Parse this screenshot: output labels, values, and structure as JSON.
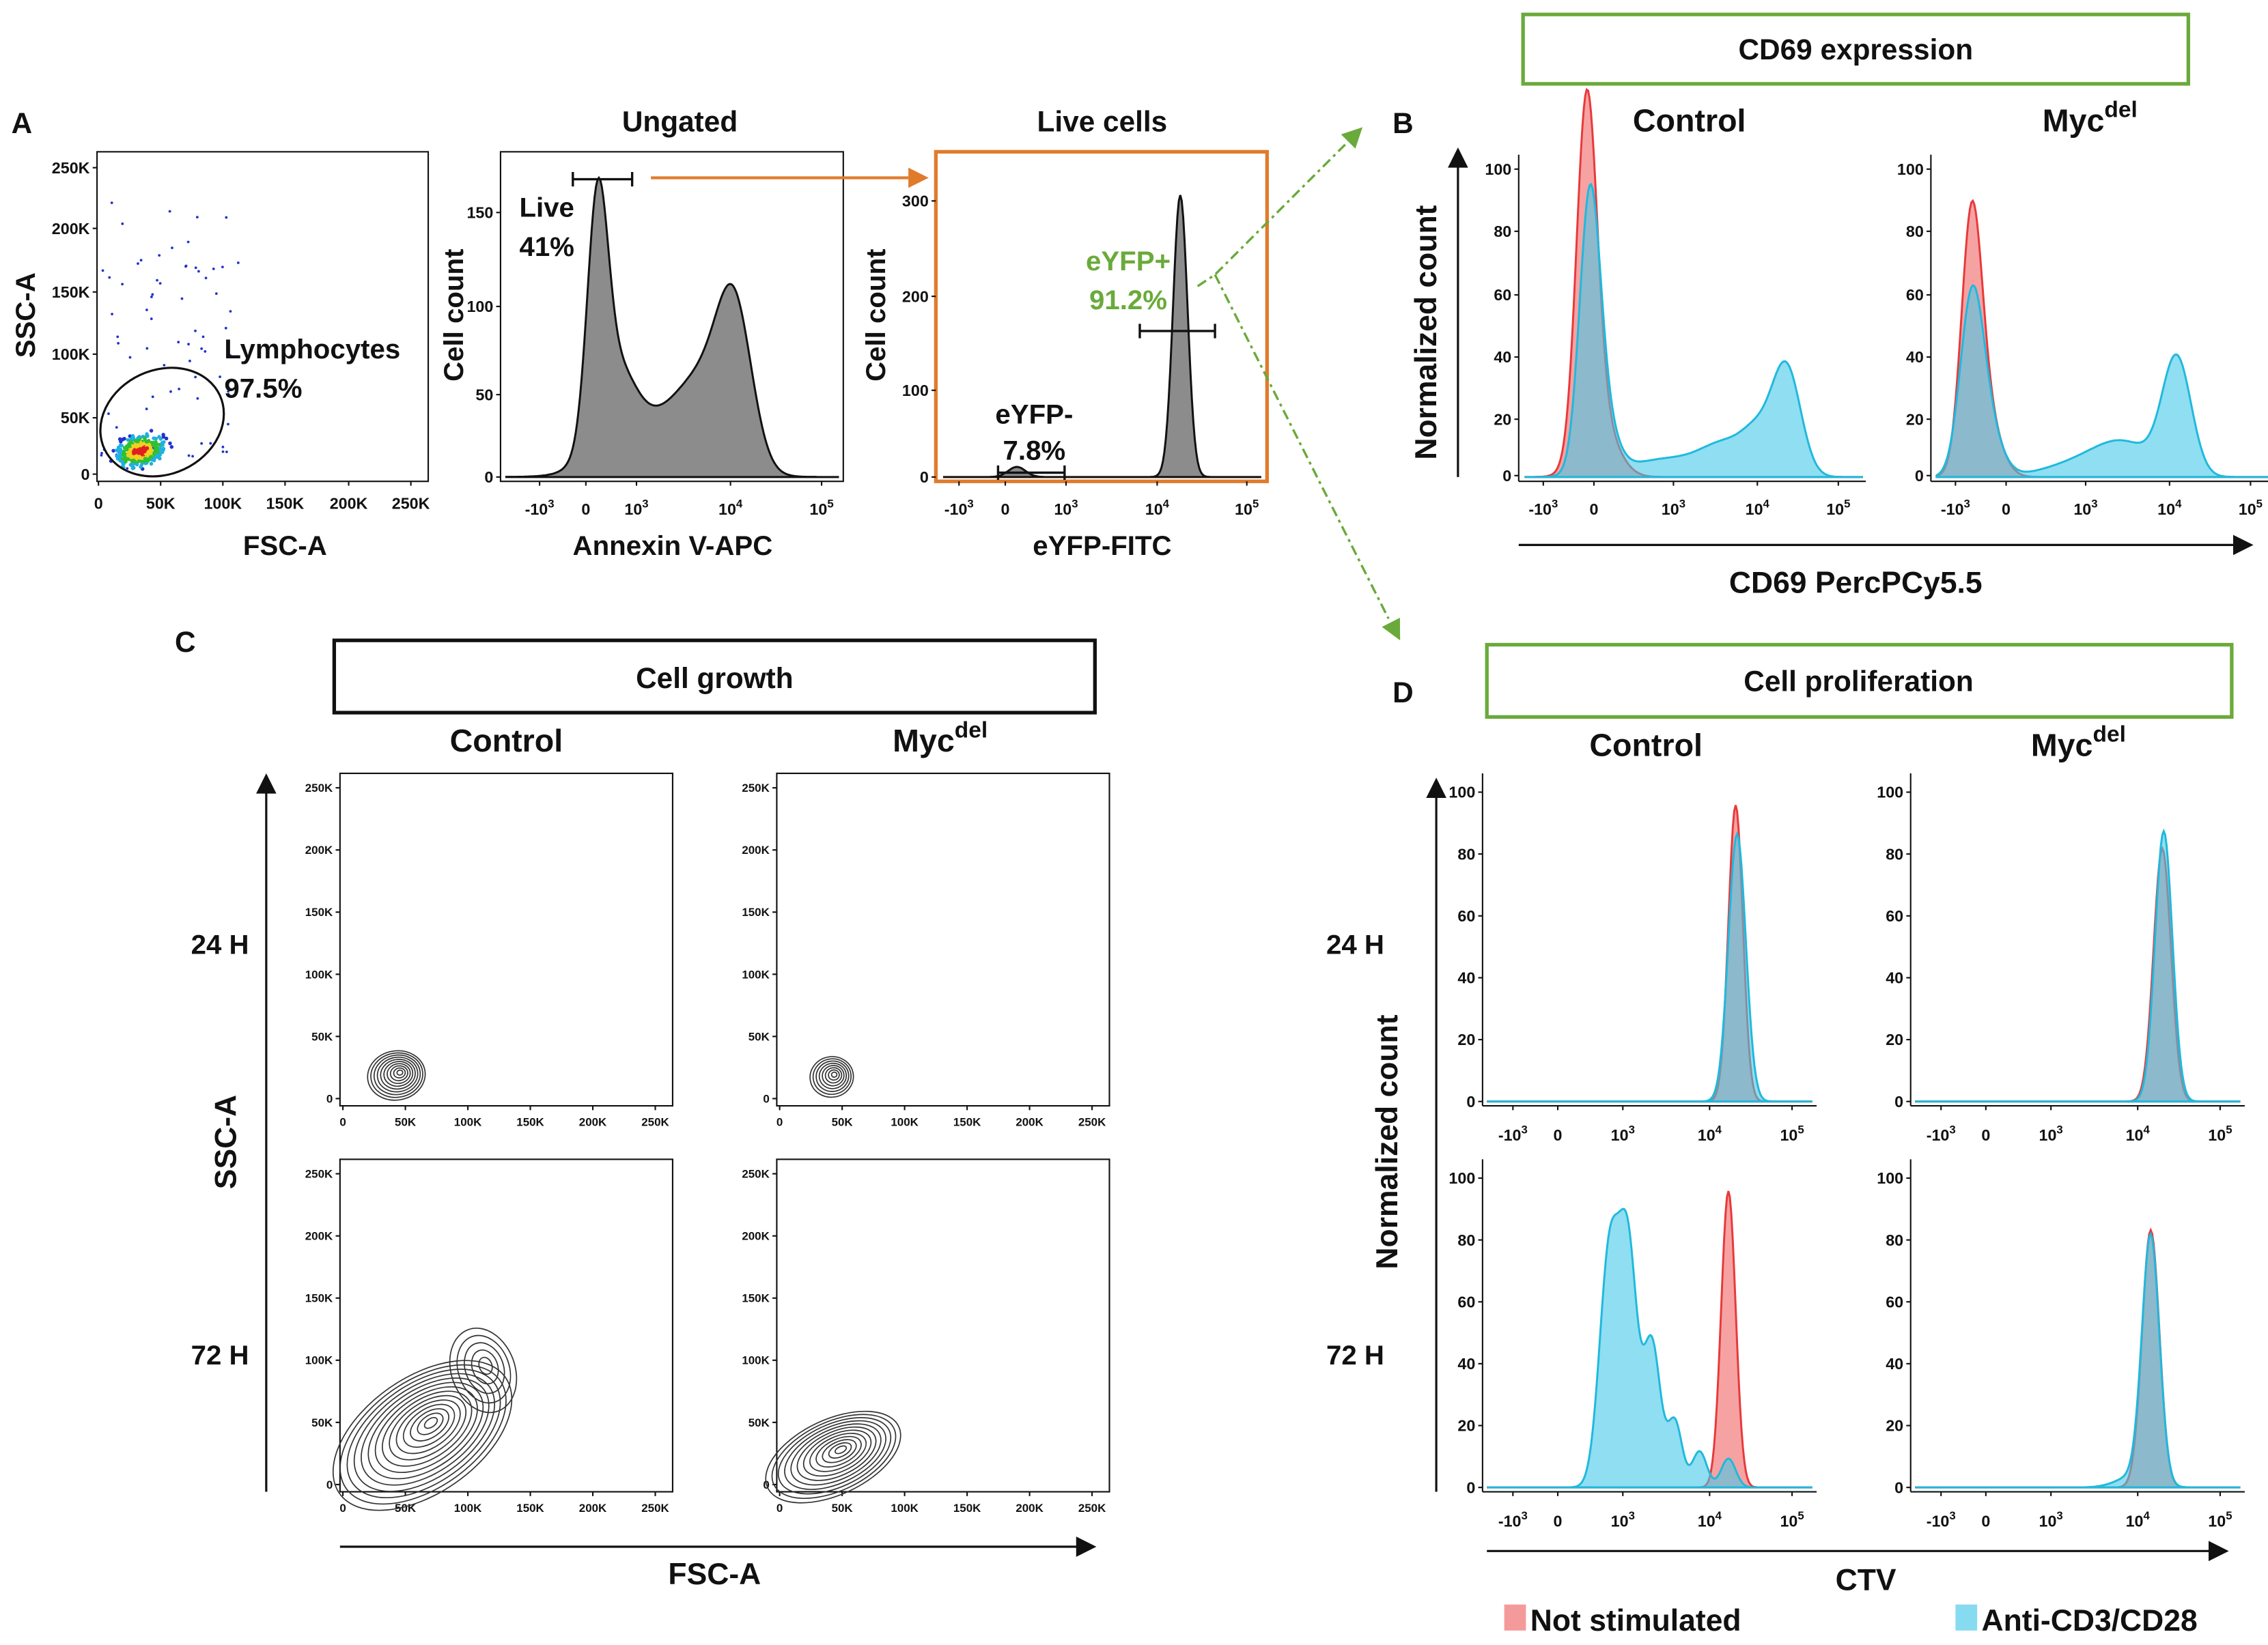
{
  "panel_a": {
    "label": "A",
    "scatter": {
      "y_label": "SSC-A",
      "x_label": "FSC-A",
      "yticks": [
        "250K",
        "200K",
        "150K",
        "100K",
        "50K",
        "0"
      ],
      "xticks": [
        "0",
        "50K",
        "100K",
        "150K",
        "200K",
        "250K"
      ],
      "gate_name": "Lymphocytes",
      "gate_percent": "97.5%"
    },
    "ungated": {
      "title": "Ungated",
      "y_label": "Cell count",
      "x_label": "Annexin V-APC",
      "yticks": [
        "150",
        "100",
        "50",
        "0"
      ],
      "gate_name": "Live",
      "gate_percent": "41%"
    },
    "live_cells": {
      "title": "Live cells",
      "y_label": "Cell count",
      "x_label": "eYFP-FITC",
      "yticks": [
        "300",
        "200",
        "100",
        "0"
      ],
      "negative_name": "eYFP-",
      "negative_percent": "7.8%",
      "positive_name": "eYFP+",
      "positive_percent": "91.2%"
    }
  },
  "log_ticks": [
    {
      "base": "-10",
      "exp": "3"
    },
    {
      "base": "0"
    },
    {
      "base": "10",
      "exp": "3"
    },
    {
      "base": "10",
      "exp": "4"
    },
    {
      "base": "10",
      "exp": "5"
    }
  ],
  "conditions": {
    "control": "Control",
    "myc": {
      "base": "Myc",
      "sup": "del"
    }
  },
  "panel_b": {
    "label": "B",
    "box_title": "CD69 expression",
    "y_label": "Normalized count",
    "x_label": "CD69 PercPCy5.5",
    "yticks": [
      "100",
      "80",
      "60",
      "40",
      "20",
      "0"
    ]
  },
  "panel_c": {
    "label": "C",
    "box_title": "Cell growth",
    "rows": [
      "24 H",
      "72 H"
    ],
    "y_label": "SSC-A",
    "x_label": "FSC-A",
    "yticks": [
      "250K",
      "200K",
      "150K",
      "100K",
      "50K",
      "0"
    ],
    "xticks": [
      "0",
      "50K",
      "100K",
      "150K",
      "200K",
      "250K"
    ]
  },
  "panel_d": {
    "label": "D",
    "box_title": "Cell proliferation",
    "rows": [
      "24 H",
      "72 H"
    ],
    "y_label": "Normalized count",
    "x_label": "CTV",
    "yticks": [
      "100",
      "80",
      "60",
      "40",
      "20",
      "0"
    ],
    "legend": [
      "Not stimulated",
      "Anti-CD3/CD28"
    ]
  }
}
